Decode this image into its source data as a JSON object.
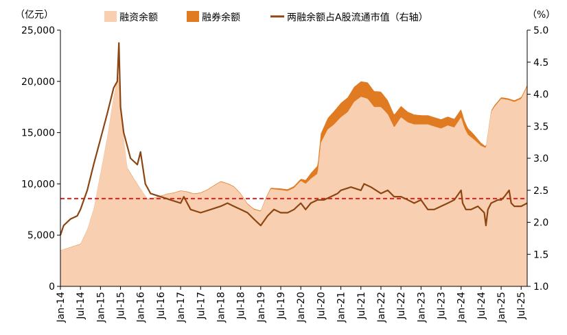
{
  "chart_data": {
    "type": "area",
    "left_unit": "（亿元）",
    "right_unit": "（%）",
    "legend": [
      {
        "name": "融资余额",
        "kind": "area",
        "color": "#f8cfb0"
      },
      {
        "name": "融券余额",
        "kind": "area",
        "color": "#e07b22"
      },
      {
        "name": "两融余额占A股流通市值（右轴）",
        "kind": "line",
        "color": "#8b4513"
      }
    ],
    "left_axis": {
      "min": 0,
      "max": 25000,
      "ticks": [
        "0",
        "5,000",
        "10,000",
        "15,000",
        "20,000",
        "25,000"
      ],
      "tick_values": [
        0,
        5000,
        10000,
        15000,
        20000,
        25000
      ]
    },
    "right_axis": {
      "min": 1.0,
      "max": 5.0,
      "ticks": [
        "1.0",
        "1.5",
        "2.0",
        "2.5",
        "3.0",
        "3.5",
        "4.0",
        "4.5",
        "5.0"
      ],
      "tick_values": [
        1.0,
        1.5,
        2.0,
        2.5,
        3.0,
        3.5,
        4.0,
        4.5,
        5.0
      ]
    },
    "x_labels": [
      "Jan-14",
      "Jul-14",
      "Jan-15",
      "Jul-15",
      "Jan-16",
      "Jul-16",
      "Jan-17",
      "Jul-17",
      "Jan-18",
      "Jul-18",
      "Jan-19",
      "Jul-19",
      "Jan-20",
      "Jul-20",
      "Jan-21",
      "Jul-21",
      "Jan-22",
      "Jul-22",
      "Jan-23",
      "Jul-23",
      "Jan-24",
      "Jul-24",
      "Jan-25",
      "Jul-25"
    ],
    "x_label_times": [
      2014.0,
      2014.5,
      2015.0,
      2015.5,
      2016.0,
      2016.5,
      2017.0,
      2017.5,
      2018.0,
      2018.5,
      2019.0,
      2019.5,
      2020.0,
      2020.5,
      2021.0,
      2021.5,
      2022.0,
      2022.5,
      2023.0,
      2023.5,
      2024.0,
      2024.5,
      2025.0,
      2025.5
    ],
    "x_range": [
      2014.0,
      2025.65
    ],
    "financing_balance": {
      "x": [
        2014.0,
        2014.17,
        2014.33,
        2014.5,
        2014.67,
        2014.83,
        2015.0,
        2015.17,
        2015.33,
        2015.45,
        2015.5,
        2015.58,
        2015.67,
        2015.83,
        2016.0,
        2016.17,
        2016.33,
        2016.5,
        2016.67,
        2016.83,
        2017.0,
        2017.17,
        2017.33,
        2017.5,
        2017.67,
        2017.83,
        2018.0,
        2018.17,
        2018.33,
        2018.5,
        2018.67,
        2018.83,
        2019.0,
        2019.12,
        2019.25,
        2019.5,
        2019.67,
        2019.83,
        2020.0,
        2020.12,
        2020.25,
        2020.42,
        2020.5,
        2020.67,
        2020.83,
        2021.0,
        2021.17,
        2021.33,
        2021.5,
        2021.67,
        2021.83,
        2022.0,
        2022.17,
        2022.33,
        2022.5,
        2022.67,
        2022.83,
        2023.0,
        2023.17,
        2023.33,
        2023.5,
        2023.67,
        2023.83,
        2024.0,
        2024.08,
        2024.17,
        2024.33,
        2024.5,
        2024.62,
        2024.75,
        2024.83,
        2025.0,
        2025.17,
        2025.33,
        2025.5,
        2025.65
      ],
      "y": [
        3500,
        3700,
        3900,
        4100,
        5500,
        7500,
        11000,
        14500,
        18500,
        20500,
        18000,
        14500,
        11500,
        10500,
        9500,
        8500,
        8600,
        8800,
        9000,
        9100,
        9300,
        9200,
        9000,
        9100,
        9400,
        9800,
        10200,
        10000,
        9700,
        9000,
        8000,
        7500,
        7300,
        8500,
        9500,
        9400,
        9300,
        9600,
        10300,
        10000,
        10500,
        11000,
        14000,
        15300,
        15800,
        16500,
        17000,
        18000,
        18500,
        18300,
        17500,
        17500,
        16800,
        15500,
        16500,
        16000,
        15800,
        15800,
        15800,
        15600,
        15400,
        15700,
        15500,
        16500,
        15500,
        14800,
        14300,
        13700,
        13500,
        17000,
        17500,
        18300,
        18200,
        18000,
        18300,
        19500
      ]
    },
    "securities_lending": {
      "x": [
        2014.0,
        2015.0,
        2015.5,
        2016.0,
        2017.0,
        2018.0,
        2019.0,
        2019.5,
        2020.0,
        2020.5,
        2020.83,
        2021.0,
        2021.5,
        2021.67,
        2022.0,
        2022.5,
        2023.0,
        2023.5,
        2024.0,
        2024.33,
        2024.62,
        2024.75,
        2025.0,
        2025.5,
        2025.65
      ],
      "y": [
        20,
        60,
        80,
        30,
        50,
        60,
        80,
        150,
        200,
        900,
        1300,
        1400,
        1500,
        1600,
        1500,
        1100,
        900,
        900,
        800,
        500,
        150,
        150,
        150,
        150,
        150
      ]
    },
    "ratio_line": {
      "x": [
        2014.0,
        2014.08,
        2014.25,
        2014.42,
        2014.5,
        2014.67,
        2014.83,
        2015.0,
        2015.17,
        2015.33,
        2015.42,
        2015.46,
        2015.5,
        2015.58,
        2015.75,
        2015.92,
        2016.0,
        2016.12,
        2016.25,
        2016.5,
        2016.75,
        2017.0,
        2017.08,
        2017.25,
        2017.5,
        2017.75,
        2018.0,
        2018.17,
        2018.33,
        2018.5,
        2018.67,
        2018.83,
        2019.0,
        2019.17,
        2019.33,
        2019.5,
        2019.67,
        2019.83,
        2020.0,
        2020.12,
        2020.25,
        2020.42,
        2020.58,
        2020.75,
        2020.92,
        2021.0,
        2021.25,
        2021.5,
        2021.58,
        2021.75,
        2022.0,
        2022.17,
        2022.33,
        2022.5,
        2022.67,
        2022.83,
        2023.0,
        2023.17,
        2023.33,
        2023.5,
        2023.67,
        2023.83,
        2024.0,
        2024.04,
        2024.12,
        2024.25,
        2024.42,
        2024.58,
        2024.62,
        2024.67,
        2024.75,
        2024.92,
        2025.0,
        2025.08,
        2025.2,
        2025.25,
        2025.33,
        2025.5,
        2025.65
      ],
      "y": [
        1.8,
        1.95,
        2.05,
        2.1,
        2.2,
        2.5,
        2.9,
        3.3,
        3.7,
        4.1,
        4.2,
        4.8,
        3.8,
        3.4,
        3.0,
        2.9,
        3.1,
        2.6,
        2.45,
        2.4,
        2.35,
        2.3,
        2.4,
        2.2,
        2.15,
        2.2,
        2.25,
        2.3,
        2.25,
        2.2,
        2.15,
        2.05,
        1.95,
        2.1,
        2.2,
        2.15,
        2.15,
        2.2,
        2.3,
        2.2,
        2.3,
        2.35,
        2.35,
        2.4,
        2.45,
        2.5,
        2.55,
        2.5,
        2.6,
        2.55,
        2.45,
        2.5,
        2.4,
        2.4,
        2.35,
        2.3,
        2.35,
        2.2,
        2.2,
        2.25,
        2.3,
        2.35,
        2.5,
        2.3,
        2.2,
        2.2,
        2.25,
        2.15,
        1.95,
        2.2,
        2.3,
        2.35,
        2.35,
        2.4,
        2.5,
        2.3,
        2.25,
        2.25,
        2.3
      ]
    },
    "reference_line": {
      "value": 2.37,
      "axis": "right",
      "style": "dashed",
      "color": "#e02020"
    },
    "grid": false,
    "legend_position": "top"
  }
}
